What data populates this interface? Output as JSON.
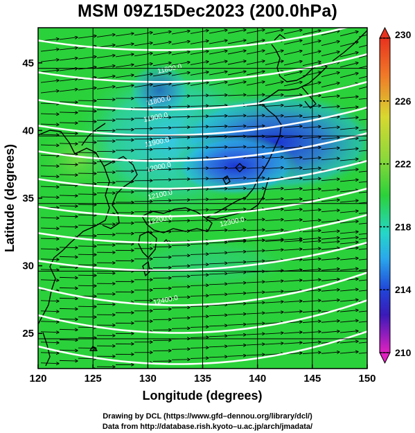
{
  "title": "MSM 09Z15Dec2023 (200.0hPa)",
  "x_axis": {
    "title": "Longitude (degrees)",
    "min": 120,
    "max": 150,
    "ticks": [
      "120",
      "125",
      "130",
      "135",
      "140",
      "145",
      "150"
    ],
    "tick_values": [
      120,
      125,
      130,
      135,
      140,
      145,
      150
    ]
  },
  "y_axis": {
    "title": "Latitude  (degrees)",
    "min": 22.4,
    "max": 47.6,
    "ticks": [
      "25",
      "30",
      "35",
      "40",
      "45"
    ],
    "tick_values": [
      25,
      30,
      35,
      40,
      45
    ]
  },
  "colorbar": {
    "min": 210,
    "max": 230,
    "labels": [
      "230",
      "226",
      "222",
      "218",
      "214",
      "210"
    ],
    "label_values": [
      230,
      226,
      222,
      218,
      214,
      210
    ]
  },
  "contour_labels": [
    "11800.0",
    "11800.0",
    "11900.0",
    "11900.0",
    "12000.0",
    "12100.0",
    "12200.0",
    "12300.0",
    "12400.0"
  ],
  "colors": {
    "field_low": "#1e3cd8",
    "field_mid": "#22c8e0",
    "field_high": "#2bd13a",
    "contour": "#ffffff",
    "vector": "#000000",
    "coast": "#000000"
  },
  "credits": {
    "line1": "Drawing by DCL (https://www.gfd–dennou.org/library/dcl/)",
    "line2": "Data from http://database.rish.kyoto–u.ac.jp/arch/jmadata/"
  }
}
